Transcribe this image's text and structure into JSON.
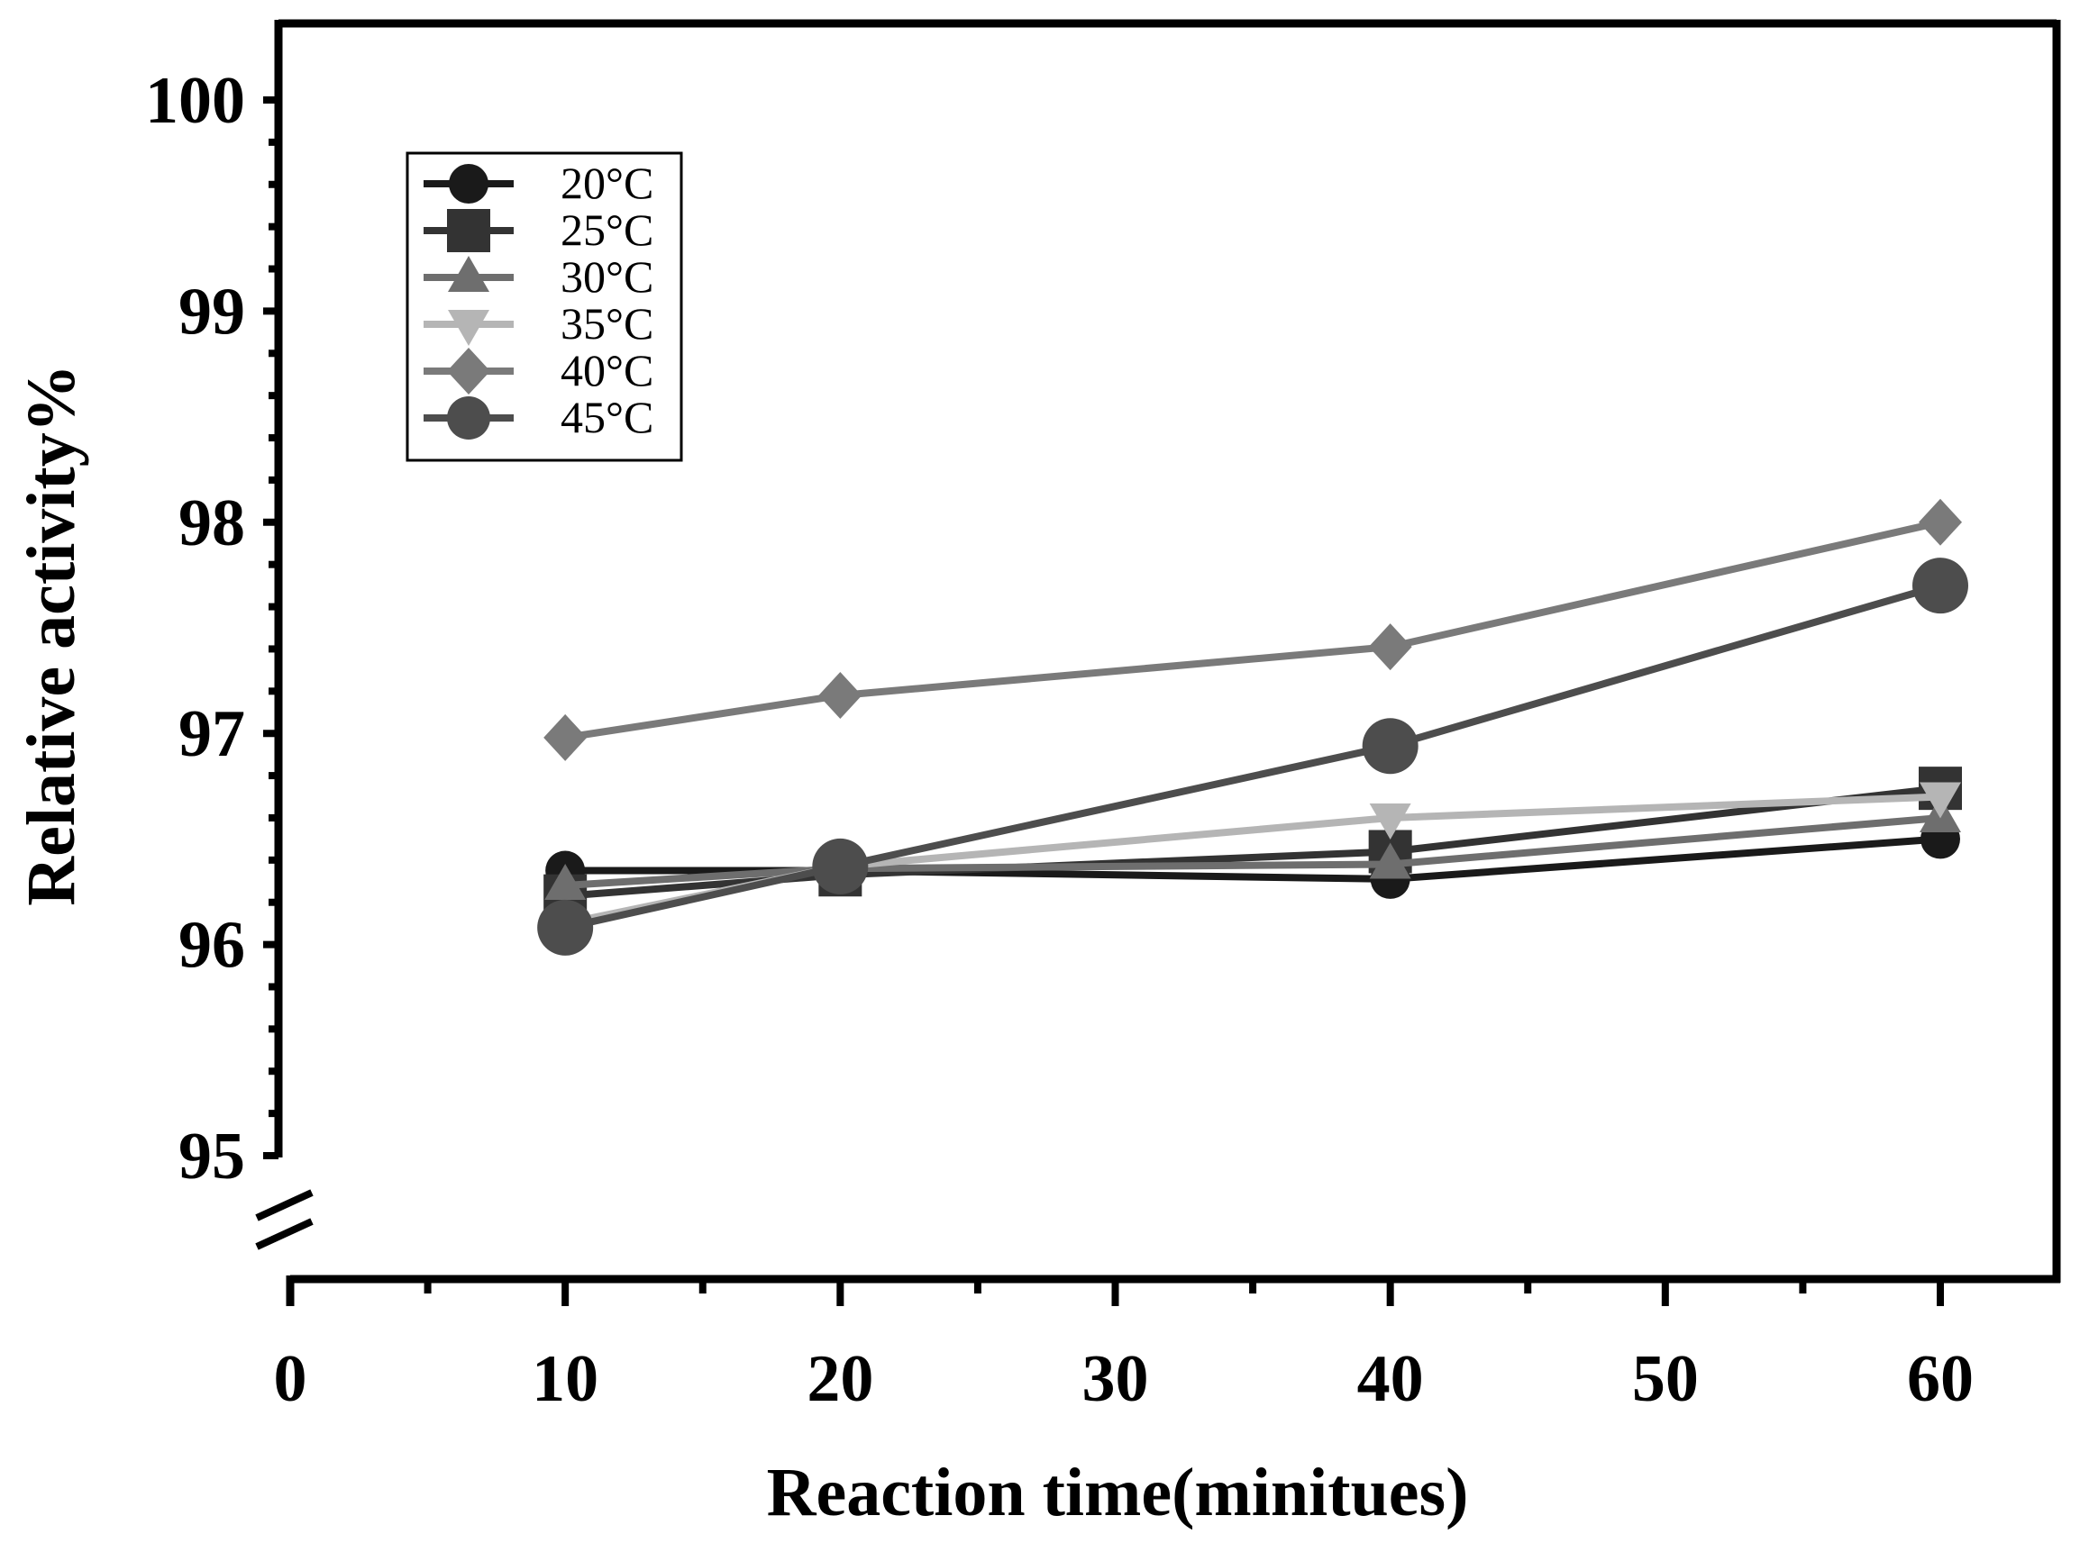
{
  "chart_data": {
    "type": "line",
    "title": "",
    "xlabel": "Reaction time(minitues)",
    "ylabel": "Relative activity%",
    "xlim": [
      0,
      64
    ],
    "ylim": [
      95,
      100.4
    ],
    "y_axis_break_below": 95,
    "xticks": [
      0,
      10,
      20,
      30,
      40,
      50,
      60
    ],
    "xtick_labels": [
      "0",
      "10",
      "20",
      "30",
      "40",
      "50",
      "60"
    ],
    "yticks": [
      95,
      96,
      97,
      98,
      99,
      100
    ],
    "ytick_labels": [
      "95",
      "96",
      "97",
      "98",
      "99",
      "100"
    ],
    "x": [
      10,
      20,
      40,
      60
    ],
    "legend_position": "top-left",
    "series": [
      {
        "name": "20°C",
        "marker": "circle",
        "color": "#1a1a1a",
        "values": [
          96.35,
          96.35,
          96.31,
          96.5
        ]
      },
      {
        "name": "25°C",
        "marker": "square",
        "color": "#333333",
        "values": [
          96.23,
          96.33,
          96.44,
          96.74
        ]
      },
      {
        "name": "30°C",
        "marker": "triangle-up",
        "color": "#6e6e6e",
        "values": [
          96.28,
          96.36,
          96.38,
          96.6
        ]
      },
      {
        "name": "35°C",
        "marker": "triangle-down",
        "color": "#b5b5b5",
        "values": [
          96.1,
          96.37,
          96.6,
          96.7
        ]
      },
      {
        "name": "40°C",
        "marker": "diamond",
        "color": "#7a7a7a",
        "values": [
          96.98,
          97.18,
          97.41,
          98.0
        ]
      },
      {
        "name": "45°C",
        "marker": "circle-large",
        "color": "#4d4d4d",
        "values": [
          96.08,
          96.37,
          96.94,
          97.7
        ]
      }
    ]
  }
}
